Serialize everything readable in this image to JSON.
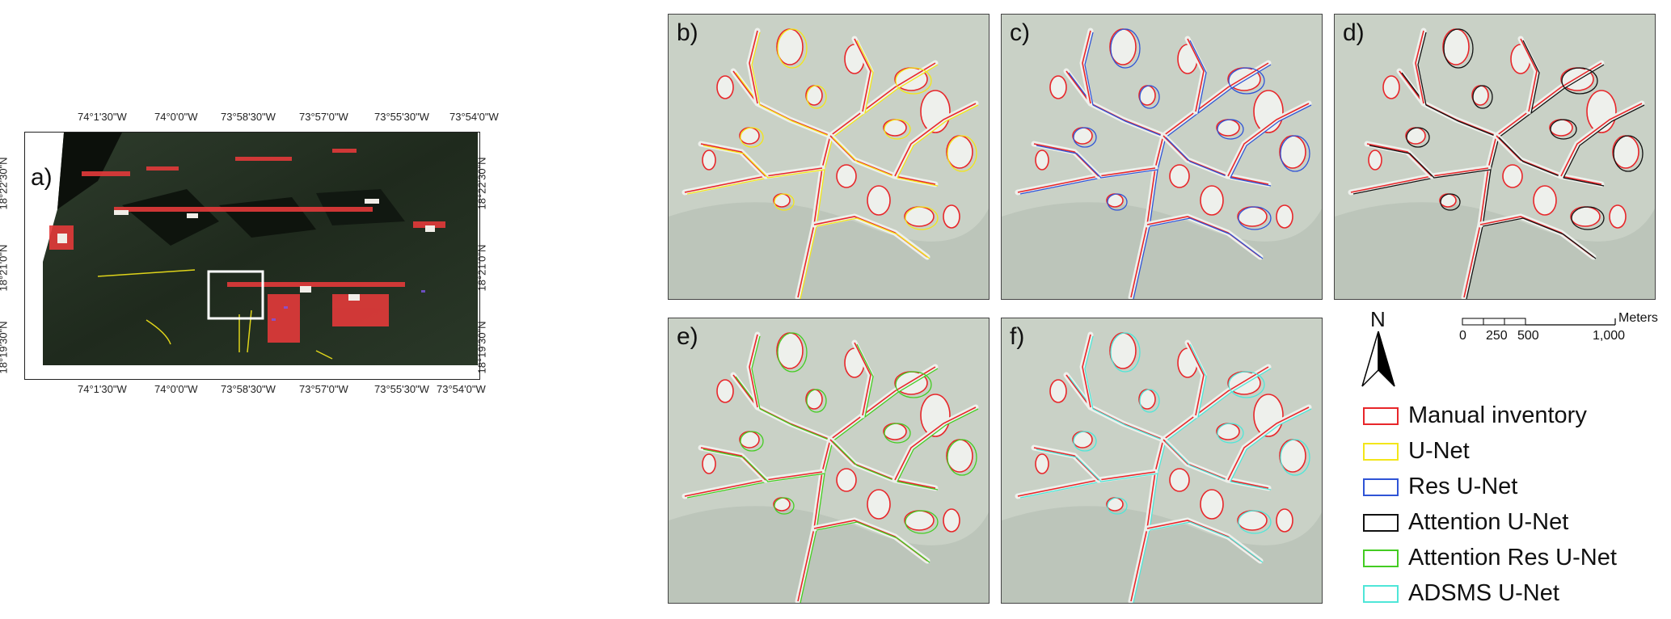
{
  "panel_a": {
    "label": "a)",
    "top_ticks": [
      "74°1'30\"W",
      "74°0'0\"W",
      "73°58'30\"W",
      "73°57'0\"W",
      "73°55'30\"W",
      "73°54'0\"W"
    ],
    "bottom_ticks": [
      "74°1'30\"W",
      "74°0'0\"W",
      "73°58'30\"W",
      "73°57'0\"W",
      "73°55'30\"W",
      "73°54'0\"W"
    ],
    "left_ticks": [
      "18°22'30\"N",
      "18°21'0\"N",
      "18°19'30\"N"
    ],
    "right_ticks": [
      "18°22'30\"N",
      "18°21'0\"N",
      "18°19'30\"N"
    ]
  },
  "panels": [
    {
      "label": "b)",
      "model": "U-Net",
      "color": "#f3e61a"
    },
    {
      "label": "c)",
      "model": "Res U-Net",
      "color": "#2f54d6"
    },
    {
      "label": "d)",
      "model": "Attention U-Net",
      "color": "#111111"
    },
    {
      "label": "e)",
      "model": "Attention Res U-Net",
      "color": "#44cc22"
    },
    {
      "label": "f)",
      "model": "ADSMS U-Net",
      "color": "#4fe6d8"
    }
  ],
  "north_arrow": {
    "label": "N"
  },
  "scale_bar": {
    "unit": "Meters",
    "ticks": [
      "0",
      "250",
      "500",
      "1,000"
    ]
  },
  "legend": [
    {
      "label": "Manual inventory",
      "color": "#e8262a"
    },
    {
      "label": "U-Net",
      "color": "#f3e61a"
    },
    {
      "label": "Res U-Net",
      "color": "#2f54d6"
    },
    {
      "label": "Attention U-Net",
      "color": "#111111"
    },
    {
      "label": "Attention Res U-Net",
      "color": "#44cc22"
    },
    {
      "label": "ADSMS U-Net",
      "color": "#4fe6d8"
    }
  ]
}
